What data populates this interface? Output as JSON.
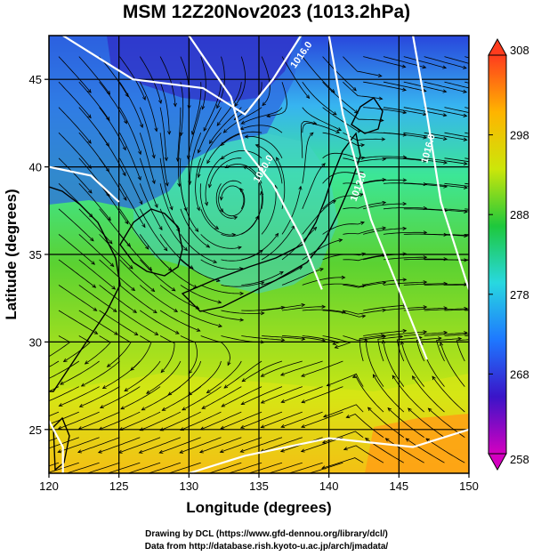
{
  "title": "MSM 12Z20Nov2023 (1013.2hPa)",
  "chart_data": {
    "type": "map",
    "xlabel": "Longitude (degrees)",
    "ylabel": "Latitude  (degrees)",
    "xlim": [
      120,
      150
    ],
    "ylim": [
      22.5,
      47.5
    ],
    "x_ticks": [
      120,
      125,
      130,
      135,
      140,
      145,
      150
    ],
    "y_ticks": [
      25,
      30,
      35,
      40,
      45
    ],
    "colorbar": {
      "min": 258,
      "max": 308,
      "ticks": [
        258,
        268,
        278,
        288,
        298,
        308
      ],
      "colors": [
        "#d400c0",
        "#3a14c8",
        "#1e78ff",
        "#28d8e0",
        "#1ec83c",
        "#cce60a",
        "#ffb400",
        "#ff3c1e"
      ]
    },
    "field_colors": {
      "cold": "#2846dc",
      "cool": "#37b4f0",
      "mild": "#3ce696",
      "warm": "#5ad232",
      "hot": "#c8e614",
      "hottest": "#ffa014"
    },
    "isobars": [
      {
        "label": "1016.0"
      },
      {
        "label": "1020.0"
      },
      {
        "label": "1012.0"
      },
      {
        "label": "1016.0"
      }
    ],
    "low_center": {
      "lon": 133.0,
      "lat": 38.0
    }
  },
  "credits": {
    "line1": "Drawing by DCL (https://www.gfd-dennou.org/library/dcl/)",
    "line2": "Data from http://database.rish.kyoto-u.ac.jp/arch/jmadata/"
  }
}
